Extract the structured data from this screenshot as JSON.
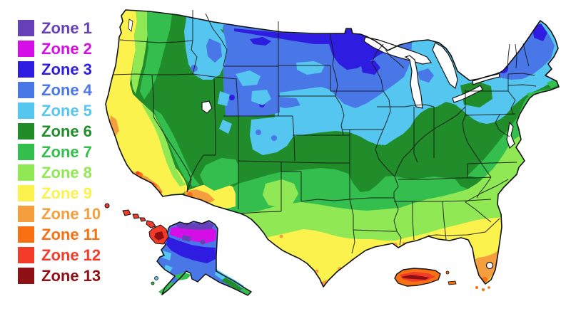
{
  "figure": {
    "background": "#FFFFFF",
    "outline_color": "#111111"
  },
  "legend": {
    "position": "top-left"
  },
  "zones": [
    {
      "label": "Zone 1",
      "color": "#6640B8"
    },
    {
      "label": "Zone 2",
      "color": "#D50EE8"
    },
    {
      "label": "Zone 3",
      "color": "#2E1CE0"
    },
    {
      "label": "Zone 4",
      "color": "#4A77E8"
    },
    {
      "label": "Zone 5",
      "color": "#55C6F0"
    },
    {
      "label": "Zone 6",
      "color": "#208C2A"
    },
    {
      "label": "Zone 7",
      "color": "#33BE4E"
    },
    {
      "label": "Zone 8",
      "color": "#8FE854"
    },
    {
      "label": "Zone 9",
      "color": "#FBF24E"
    },
    {
      "label": "Zone 10",
      "color": "#F59E3E"
    },
    {
      "label": "Zone 11",
      "color": "#F87012"
    },
    {
      "label": "Zone 12",
      "color": "#F23B28"
    },
    {
      "label": "Zone 13",
      "color": "#8E1014"
    }
  ]
}
